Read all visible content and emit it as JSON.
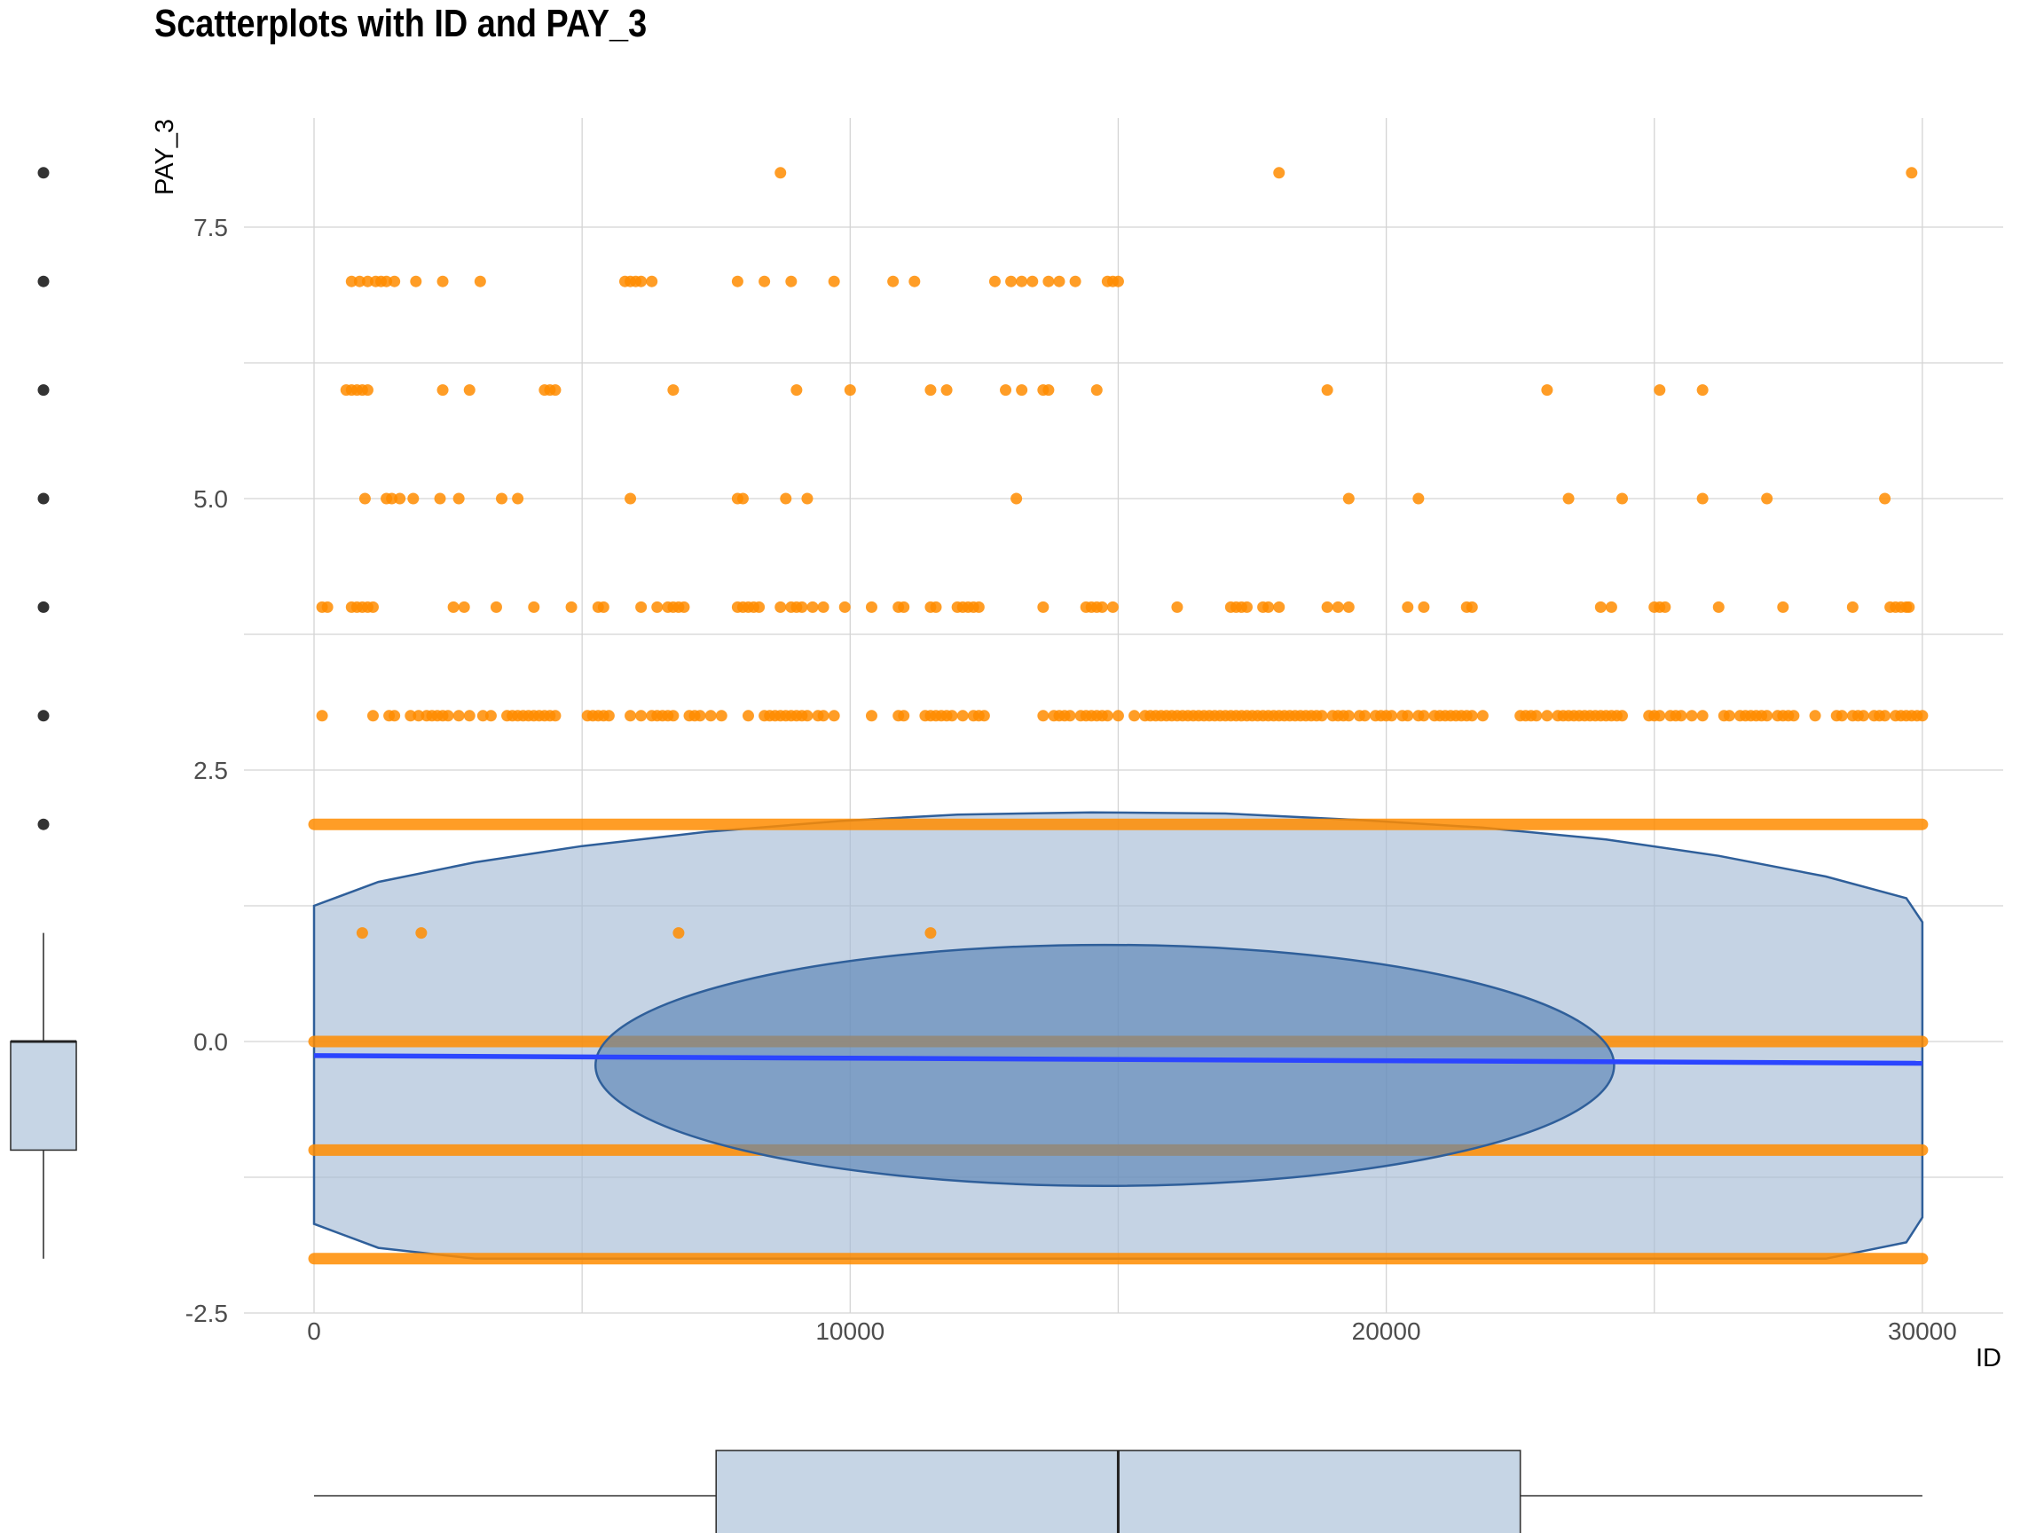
{
  "chart_data": {
    "type": "scatter",
    "title": "Scatterplots with ID and PAY_3",
    "xlabel": "ID",
    "ylabel": "PAY_3",
    "xlim": [
      -1500,
      31500
    ],
    "ylim": [
      -2.5,
      8.5
    ],
    "x_ticks": [
      0,
      10000,
      20000,
      30000
    ],
    "x_tick_labels": [
      "0",
      "10000",
      "20000",
      "30000"
    ],
    "y_ticks": [
      -2.5,
      0.0,
      2.5,
      5.0,
      7.5
    ],
    "y_tick_labels": [
      "-2.5",
      "0.0",
      "2.5",
      "5.0",
      "7.5"
    ],
    "grid": true,
    "colors": {
      "points": "#ff8c00",
      "regression_line": "#2b45ff",
      "ellipse_outer": "#a6bcd6",
      "ellipse_inner": "#5a84b5",
      "ellipse_stroke": "#2f5f9a",
      "box_fill": "#c6d5e5",
      "grid": "#d4d4d4"
    },
    "series": [
      {
        "type": "points",
        "dense_rows": [
          {
            "y": -2,
            "x_range": [
              0,
              30000
            ]
          },
          {
            "y": -1,
            "x_range": [
              0,
              30000
            ]
          },
          {
            "y": 0,
            "x_range": [
              0,
              30000
            ]
          },
          {
            "y": 2,
            "x_range": [
              0,
              30000
            ]
          }
        ],
        "sparse_points": [
          {
            "y": 8,
            "x": [
              8700,
              18000,
              29800
            ]
          },
          {
            "y": 7,
            "x": [
              700,
              850,
              1000,
              1150,
              1250,
              1350,
              1500,
              1900,
              2400,
              3100,
              5800,
              5900,
              6000,
              6100,
              6300,
              7900,
              8400,
              8900,
              9700,
              10800,
              11200,
              12700,
              13000,
              13200,
              13400,
              13700,
              13900,
              14200,
              14800,
              14900,
              15000
            ]
          },
          {
            "y": 6,
            "x": [
              600,
              700,
              800,
              900,
              1000,
              2400,
              2900,
              4300,
              4400,
              4500,
              6700,
              9000,
              10000,
              11500,
              11800,
              12900,
              13200,
              13600,
              13700,
              14600,
              18900,
              23000,
              25100,
              25900
            ]
          },
          {
            "y": 5,
            "x": [
              950,
              1350,
              1450,
              1600,
              1850,
              2350,
              2700,
              3500,
              3800,
              5900,
              7900,
              8000,
              8800,
              9200,
              13100,
              19300,
              20600,
              23400,
              24400,
              25900,
              27100,
              29300
            ]
          },
          {
            "y": 4,
            "x": [
              150,
              250,
              700,
              800,
              900,
              1000,
              1100,
              2600,
              2800,
              3400,
              4100,
              4800,
              5300,
              5400,
              6100,
              6400,
              6600,
              6700,
              6800,
              6900,
              7900,
              8000,
              8100,
              8200,
              8300,
              8700,
              8900,
              9000,
              9100,
              9300,
              9500,
              9900,
              10400,
              10900,
              11000,
              11500,
              11600,
              12000,
              12100,
              12200,
              12300,
              12400,
              13600,
              14400,
              14500,
              14600,
              14700,
              14900,
              16100,
              17100,
              17200,
              17300,
              17400,
              17700,
              17800,
              18000,
              18900,
              19100,
              19300,
              20400,
              20700,
              21500,
              21600,
              24000,
              24200,
              25000,
              25100,
              25200,
              26200,
              27400,
              28700,
              29400,
              29500,
              29600,
              29700,
              29750
            ]
          },
          {
            "y": 3,
            "x": [
              150,
              1100,
              1400,
              1500,
              1800,
              1950,
              2100,
              2200,
              2300,
              2400,
              2500,
              2700,
              2900,
              3150,
              3300,
              3600,
              3700,
              3800,
              3900,
              4000,
              4100,
              4200,
              4300,
              4400,
              4500,
              5100,
              5200,
              5300,
              5400,
              5500,
              5900,
              6100,
              6300,
              6400,
              6500,
              6600,
              6700,
              7000,
              7100,
              7200,
              7400,
              7600,
              8100,
              8400,
              8500,
              8600,
              8700,
              8800,
              8900,
              9000,
              9100,
              9200,
              9400,
              9500,
              9700,
              10400,
              10900,
              11000,
              11400,
              11500,
              11600,
              11700,
              11800,
              11900,
              12100,
              12300,
              12400,
              12500,
              13600,
              13800,
              13900,
              14000,
              14100,
              14300,
              14400,
              14500,
              14600,
              14700,
              14800,
              15000,
              15300,
              15500,
              15600,
              15700,
              15800,
              15900,
              16000,
              16100,
              16200,
              16300,
              16400,
              16500,
              16600,
              16700,
              16800,
              16900,
              17000,
              17100,
              17200,
              17300,
              17400,
              17500,
              17600,
              17700,
              17800,
              17900,
              18000,
              18100,
              18200,
              18300,
              18400,
              18500,
              18600,
              18700,
              18800,
              19000,
              19100,
              19200,
              19300,
              19500,
              19600,
              19800,
              19900,
              20000,
              20100,
              20300,
              20400,
              20600,
              20700,
              20900,
              21000,
              21100,
              21200,
              21300,
              21400,
              21500,
              21600,
              21800,
              22500,
              22600,
              22700,
              22800,
              23000,
              23200,
              23300,
              23400,
              23500,
              23600,
              23700,
              23800,
              23900,
              24000,
              24100,
              24200,
              24300,
              24400,
              24900,
              25000,
              25100,
              25300,
              25400,
              25500,
              25700,
              25900,
              26300,
              26400,
              26600,
              26700,
              26800,
              26900,
              27000,
              27100,
              27300,
              27400,
              27500,
              27600,
              28000,
              28400,
              28500,
              28700,
              28800,
              28900,
              29100,
              29200,
              29300,
              29500,
              29600,
              29700,
              29800,
              29900,
              30000
            ]
          },
          {
            "y": 1,
            "x": [
              900,
              2000,
              6800,
              11500
            ]
          }
        ]
      },
      {
        "type": "regression_line",
        "x": [
          0,
          30000
        ],
        "y": [
          -0.13,
          -0.2
        ]
      },
      {
        "type": "ellipse",
        "name": "outer",
        "x": [
          0,
          1200,
          3000,
          5000,
          7300,
          9800,
          12000,
          14500,
          17000,
          19500,
          21800,
          24100,
          26200,
          28200,
          29700,
          30000,
          30000,
          29700,
          28200,
          26200,
          24100,
          21800,
          19500,
          17000,
          14500,
          12000,
          9800,
          7300,
          5000,
          3000,
          1200,
          0
        ],
        "y": [
          1.25,
          1.47,
          1.65,
          1.8,
          1.93,
          2.03,
          2.09,
          2.11,
          2.1,
          2.04,
          1.97,
          1.86,
          1.71,
          1.52,
          1.32,
          1.1,
          -1.62,
          -1.85,
          -2.0,
          -2.0,
          -2.0,
          -2.0,
          -2.0,
          -2.0,
          -2.0,
          -2.0,
          -2.0,
          -2.0,
          -2.0,
          -2.0,
          -1.9,
          -1.68
        ]
      },
      {
        "type": "ellipse",
        "name": "inner",
        "center": [
          14750,
          -0.22
        ],
        "radius_x": 9500,
        "radius_y": 1.11
      }
    ],
    "marginal_boxplot_x": {
      "min": 0,
      "q1": 7500,
      "median": 15000,
      "q3": 22500,
      "max": 30000
    },
    "marginal_boxplot_y": {
      "min": -2,
      "q1": -1,
      "median": 0,
      "q3": 0,
      "upper_whisker": 1,
      "outliers": [
        2,
        3,
        4,
        5,
        6,
        7,
        8
      ]
    }
  }
}
